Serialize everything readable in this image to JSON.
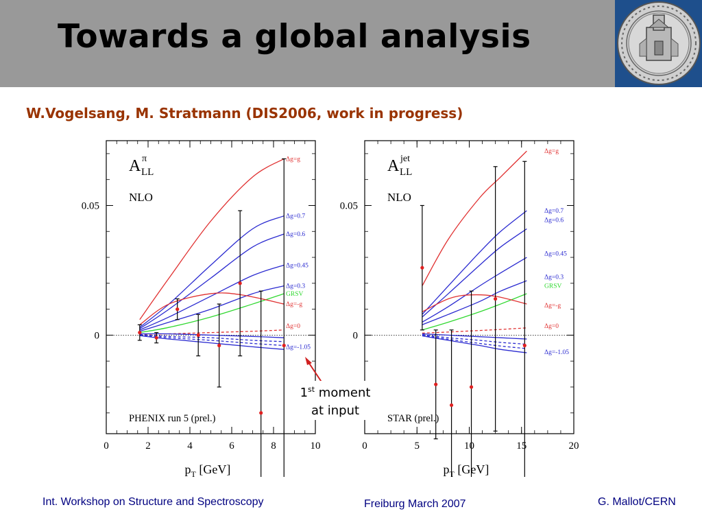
{
  "slide": {
    "title": "Towards a global analysis",
    "subtitle": "W.Vogelsang, M. Stratmann (DIS2006, work in progress)",
    "annotation_line1_base": "1",
    "annotation_line1_sup": "st",
    "annotation_line1_rest": " moment",
    "annotation_line2": "at input",
    "footer_left": "Int. Workshop on Structure and Spectroscopy",
    "footer_center": "Freiburg March 2007",
    "footer_right": "G. Mallot/CERN"
  },
  "seal": {
    "icon": "university-seal-icon",
    "colors": {
      "frame": "#1e4f8c",
      "seal": "#cfcfcf"
    }
  },
  "chart_data": [
    {
      "type": "line",
      "observable_base": "A",
      "observable_sup": "π",
      "observable_sub": "LL",
      "order_label": "NLO",
      "experiment_label": "PHENIX run 5 (prel.)",
      "xlabel_base": "p",
      "xlabel_sub": "T",
      "xlabel_unit": " [GeV]",
      "xlim": [
        0,
        10
      ],
      "ylim": [
        -0.038,
        0.075
      ],
      "xticks": [
        0,
        2,
        4,
        6,
        8,
        10
      ],
      "yticks": [
        {
          "value": 0,
          "label": "0"
        },
        {
          "value": 0.05,
          "label": "0.05"
        }
      ],
      "series": [
        {
          "name": "Δg=g",
          "color": "#e03030",
          "dash": false,
          "x": [
            1.6,
            3,
            5,
            7,
            8.5
          ],
          "y": [
            0.006,
            0.022,
            0.044,
            0.061,
            0.068
          ]
        },
        {
          "name": "Δg=0.7",
          "color": "#2a2ad0",
          "dash": false,
          "x": [
            1.6,
            3,
            5,
            7,
            8.5
          ],
          "y": [
            0.003,
            0.012,
            0.027,
            0.041,
            0.046
          ]
        },
        {
          "name": "Δg=0.6",
          "color": "#2a2ad0",
          "dash": false,
          "x": [
            1.6,
            3,
            5,
            7,
            8.5
          ],
          "y": [
            0.0025,
            0.01,
            0.022,
            0.034,
            0.039
          ]
        },
        {
          "name": "Δg=0.45",
          "color": "#2a2ad0",
          "dash": false,
          "x": [
            1.6,
            3,
            5,
            7,
            8.5
          ],
          "y": [
            0.002,
            0.007,
            0.015,
            0.023,
            0.027
          ]
        },
        {
          "name": "Δg=0.3",
          "color": "#2a2ad0",
          "dash": false,
          "x": [
            1.6,
            3,
            5,
            7,
            8.5
          ],
          "y": [
            0.0015,
            0.005,
            0.01,
            0.016,
            0.019
          ]
        },
        {
          "name": "GRSV",
          "color": "#30d830",
          "dash": false,
          "x": [
            1.6,
            3,
            5,
            7,
            8.5
          ],
          "y": [
            0.001,
            0.003,
            0.007,
            0.012,
            0.016
          ]
        },
        {
          "name": "Δg=-g",
          "color": "#e03030",
          "dash": false,
          "x": [
            1.6,
            3,
            5,
            6.5,
            8.5
          ],
          "y": [
            0.004,
            0.012,
            0.016,
            0.0155,
            0.012
          ]
        },
        {
          "name": "Δg=0",
          "color": "#e03030",
          "dash": true,
          "x": [
            1.6,
            3,
            5,
            7,
            8.5
          ],
          "y": [
            0.0003,
            0.0005,
            0.001,
            0.0015,
            0.002
          ]
        },
        {
          "name": "",
          "color": "#2a2ad0",
          "dash": false,
          "x": [
            1.6,
            3,
            5,
            7,
            8.5
          ],
          "y": [
            0.0005,
            0.0005,
            0,
            -0.0005,
            -0.001
          ]
        },
        {
          "name": "",
          "color": "#2a2ad0",
          "dash": true,
          "x": [
            1.6,
            3,
            5,
            7,
            8.5
          ],
          "y": [
            0.0002,
            -0.0005,
            -0.001,
            -0.002,
            -0.0025
          ]
        },
        {
          "name": "",
          "color": "#2a2ad0",
          "dash": true,
          "x": [
            1.6,
            3,
            5,
            7,
            8.5
          ],
          "y": [
            0,
            -0.001,
            -0.002,
            -0.0032,
            -0.004
          ]
        },
        {
          "name": "Δg=-1.05",
          "color": "#2a2ad0",
          "dash": false,
          "x": [
            1.6,
            3,
            5,
            7,
            8.5
          ],
          "y": [
            -0.0002,
            -0.0015,
            -0.003,
            -0.0045,
            -0.0055
          ]
        }
      ],
      "legend_y": [
        0.068,
        0.046,
        0.039,
        0.027,
        0.019,
        0.016,
        0.012,
        0.0035,
        -0.0045
      ],
      "points": [
        {
          "x": 1.6,
          "y": 0.001,
          "err": 0.003
        },
        {
          "x": 2.4,
          "y": -0.001,
          "err": 0.002
        },
        {
          "x": 3.4,
          "y": 0.01,
          "err": 0.004
        },
        {
          "x": 4.4,
          "y": 0.0,
          "err": 0.008
        },
        {
          "x": 5.4,
          "y": -0.004,
          "err": 0.016
        },
        {
          "x": 6.4,
          "y": 0.02,
          "err": 0.028
        },
        {
          "x": 7.4,
          "y": -0.03,
          "err": 0.047
        },
        {
          "x": 8.5,
          "y": -0.004,
          "err": 0.072
        }
      ]
    },
    {
      "type": "line",
      "observable_base": "A",
      "observable_sup": "jet",
      "observable_sub": "LL",
      "order_label": "NLO",
      "experiment_label": "STAR (prel.)",
      "xlabel_base": "p",
      "xlabel_sub": "T",
      "xlabel_unit": " [GeV]",
      "xlim": [
        0,
        20
      ],
      "ylim": [
        -0.038,
        0.075
      ],
      "xticks": [
        0,
        5,
        10,
        15,
        20
      ],
      "yticks": [
        {
          "value": 0,
          "label": "0"
        },
        {
          "value": 0.05,
          "label": "0.05"
        }
      ],
      "series": [
        {
          "name": "Δg=g",
          "color": "#e03030",
          "dash": false,
          "x": [
            5.5,
            8,
            11,
            13,
            15.5
          ],
          "y": [
            0.019,
            0.037,
            0.053,
            0.061,
            0.071
          ]
        },
        {
          "name": "Δg=0.7",
          "color": "#2a2ad0",
          "dash": false,
          "x": [
            5.5,
            8,
            11,
            13,
            15.5
          ],
          "y": [
            0.008,
            0.019,
            0.032,
            0.04,
            0.048
          ]
        },
        {
          "name": "Δg=0.6",
          "color": "#2a2ad0",
          "dash": false,
          "x": [
            5.5,
            8,
            11,
            13,
            15.5
          ],
          "y": [
            0.007,
            0.016,
            0.027,
            0.034,
            0.041
          ]
        },
        {
          "name": "Δg=0.45",
          "color": "#2a2ad0",
          "dash": false,
          "x": [
            5.5,
            8,
            11,
            13,
            15.5
          ],
          "y": [
            0.005,
            0.011,
            0.019,
            0.024,
            0.03
          ]
        },
        {
          "name": "Δg=0.3",
          "color": "#2a2ad0",
          "dash": false,
          "x": [
            5.5,
            8,
            11,
            13,
            15.5
          ],
          "y": [
            0.004,
            0.008,
            0.013,
            0.017,
            0.021
          ]
        },
        {
          "name": "GRSV",
          "color": "#30d830",
          "dash": false,
          "x": [
            5.5,
            8,
            11,
            13,
            15.5
          ],
          "y": [
            0.002,
            0.005,
            0.009,
            0.012,
            0.016
          ]
        },
        {
          "name": "Δg=-g",
          "color": "#e03030",
          "dash": false,
          "x": [
            5.5,
            8,
            10,
            12.5,
            15.5
          ],
          "y": [
            0.009,
            0.014,
            0.0155,
            0.015,
            0.012
          ]
        },
        {
          "name": "Δg=0",
          "color": "#e03030",
          "dash": true,
          "x": [
            5.5,
            8,
            11,
            13,
            15.5
          ],
          "y": [
            0.0008,
            0.0012,
            0.0018,
            0.0022,
            0.0028
          ]
        },
        {
          "name": "",
          "color": "#2a2ad0",
          "dash": false,
          "x": [
            5.5,
            8,
            11,
            13,
            15.5
          ],
          "y": [
            0.0005,
            0,
            -0.0006,
            -0.001,
            -0.0015
          ]
        },
        {
          "name": "",
          "color": "#2a2ad0",
          "dash": true,
          "x": [
            5.5,
            8,
            11,
            13,
            15.5
          ],
          "y": [
            0.0002,
            -0.001,
            -0.002,
            -0.0028,
            -0.0035
          ]
        },
        {
          "name": "",
          "color": "#2a2ad0",
          "dash": true,
          "x": [
            5.5,
            8,
            11,
            13,
            15.5
          ],
          "y": [
            0,
            -0.0016,
            -0.0032,
            -0.0042,
            -0.0052
          ]
        },
        {
          "name": "Δg=-1.05",
          "color": "#2a2ad0",
          "dash": false,
          "x": [
            5.5,
            8,
            11,
            13,
            15.5
          ],
          "y": [
            -0.0003,
            -0.002,
            -0.004,
            -0.0055,
            -0.0068
          ]
        }
      ],
      "legend_y": [
        0.071,
        0.048,
        0.0445,
        0.0315,
        0.0225,
        0.019,
        0.0115,
        0.0035,
        -0.0065
      ],
      "points": [
        {
          "x": 5.5,
          "y": 0.026,
          "err": 0.024
        },
        {
          "x": 6.8,
          "y": -0.019,
          "err": 0.021
        },
        {
          "x": 8.3,
          "y": -0.027,
          "err": 0.029
        },
        {
          "x": 10.2,
          "y": -0.02,
          "err": 0.037
        },
        {
          "x": 12.5,
          "y": 0.014,
          "err": 0.051
        },
        {
          "x": 15.3,
          "y": -0.004,
          "err": 0.071
        }
      ]
    }
  ]
}
